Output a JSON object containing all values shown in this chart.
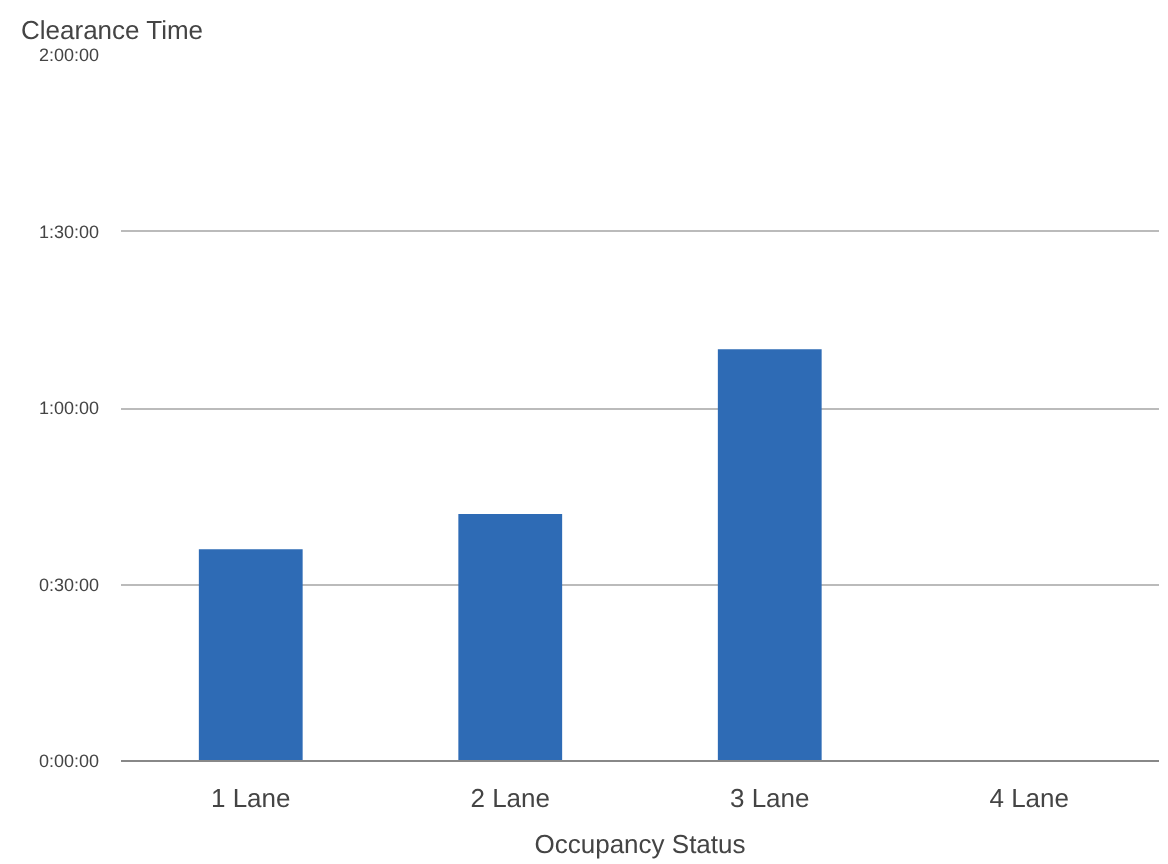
{
  "chart_data": {
    "type": "bar",
    "ylabel": "Clearance Time",
    "xlabel": "Occupancy Status",
    "categories": [
      "1 Lane",
      "2 Lane",
      "3 Lane",
      "4 Lane"
    ],
    "values": [
      36,
      42,
      70,
      null
    ],
    "color": "#2e6bb5",
    "ylim": [
      0,
      120
    ],
    "yticks": [
      {
        "value": 0,
        "label": "0:00:00"
      },
      {
        "value": 30,
        "label": "0:30:00"
      },
      {
        "value": 60,
        "label": "1:00:00"
      },
      {
        "value": 90,
        "label": "1:30:00"
      },
      {
        "value": 120,
        "label": "2:00:00"
      }
    ],
    "grid": "y"
  }
}
